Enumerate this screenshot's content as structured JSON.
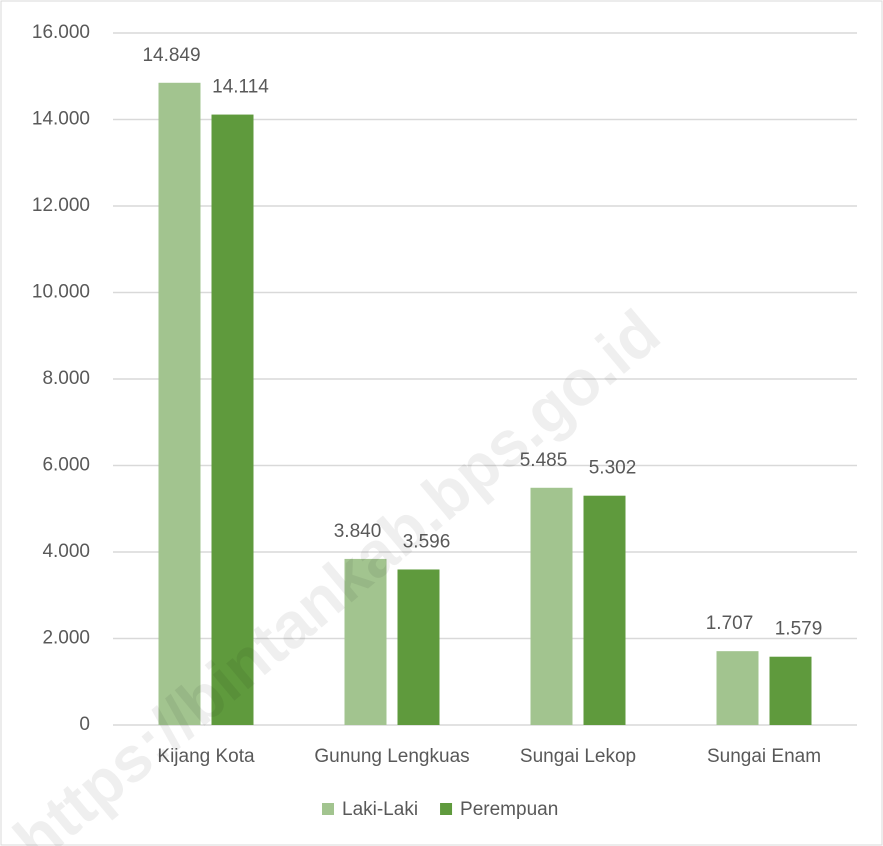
{
  "chart_data": {
    "type": "bar",
    "categories": [
      "Kijang Kota",
      "Gunung Lengkuas",
      "Sungai Lekop",
      "Sungai Enam"
    ],
    "series": [
      {
        "name": "Laki-Laki",
        "color": "#a2c48f",
        "values": [
          14849,
          3840,
          5485,
          1707
        ],
        "value_labels": [
          "14.849",
          "3.840",
          "5.485",
          "1.707"
        ]
      },
      {
        "name": "Perempuan",
        "color": "#5f9a3d",
        "values": [
          14114,
          3596,
          5302,
          1579
        ],
        "value_labels": [
          "14.114",
          "3.596",
          "5.302",
          "1.579"
        ]
      }
    ],
    "ylim": [
      0,
      16000
    ],
    "yticks": [
      0,
      {
        "value": 2000,
        "label": "2.000"
      },
      {
        "value": 4000,
        "label": "4.000"
      },
      {
        "value": 6000,
        "label": "6.000"
      },
      {
        "value": 8000,
        "label": "8.000"
      },
      {
        "value": 10000,
        "label": "10.000"
      },
      {
        "value": 12000,
        "label": "12.000"
      },
      {
        "value": 14000,
        "label": "14.000"
      },
      {
        "value": 16000,
        "label": "16.000"
      }
    ],
    "grid": true,
    "legend": "bottom",
    "watermark": "https://bintankab.bps.go.id"
  }
}
